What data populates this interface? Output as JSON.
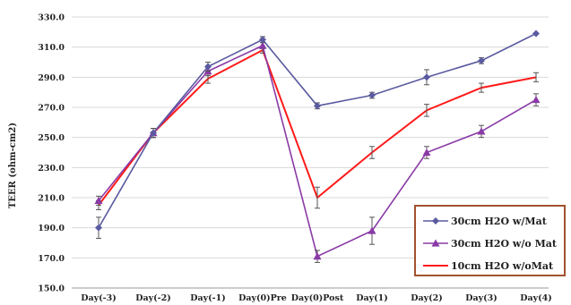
{
  "chart_data": {
    "type": "line",
    "title": "",
    "xlabel": "",
    "ylabel": "TEER (ohm-cm2)",
    "ylim": [
      150,
      330
    ],
    "yticks": [
      150,
      170,
      190,
      210,
      230,
      250,
      270,
      290,
      310,
      330
    ],
    "ytick_labels": [
      "150.0",
      "170.0",
      "190.0",
      "210.0",
      "230.0",
      "250.0",
      "270.0",
      "290.0",
      "310.0",
      "330.0"
    ],
    "categories": [
      "Day(-3)",
      "Day(-2)",
      "Day(-1)",
      "Day(0)Pre",
      "Day(0)Post",
      "Day(1)",
      "Day(2)",
      "Day(3)",
      "Day(4)"
    ],
    "grid": "horizontal",
    "legend_position": "bottom-right",
    "series": [
      {
        "name": "30cm H2O w/Mat",
        "color": "#5a5aa0",
        "marker": "diamond",
        "values": [
          190,
          253,
          297,
          315,
          271,
          278,
          290,
          301,
          319
        ],
        "errors": [
          7,
          3,
          3,
          2,
          2,
          2,
          5,
          2,
          0
        ]
      },
      {
        "name": "30cm H2O w/o Mat",
        "color": "#8a3aa6",
        "marker": "triangle",
        "values": [
          208,
          253,
          294,
          311,
          171,
          188,
          240,
          254,
          275
        ],
        "errors": [
          3,
          3,
          3,
          2,
          4,
          9,
          4,
          4,
          4
        ]
      },
      {
        "name": "10cm H2O w/oMat",
        "color": "#ff1a1a",
        "marker": "none",
        "values": [
          205,
          253,
          289,
          308,
          210,
          240,
          268,
          283,
          290
        ],
        "errors": [
          3,
          3,
          3,
          2,
          7,
          4,
          4,
          3,
          3
        ]
      }
    ]
  }
}
